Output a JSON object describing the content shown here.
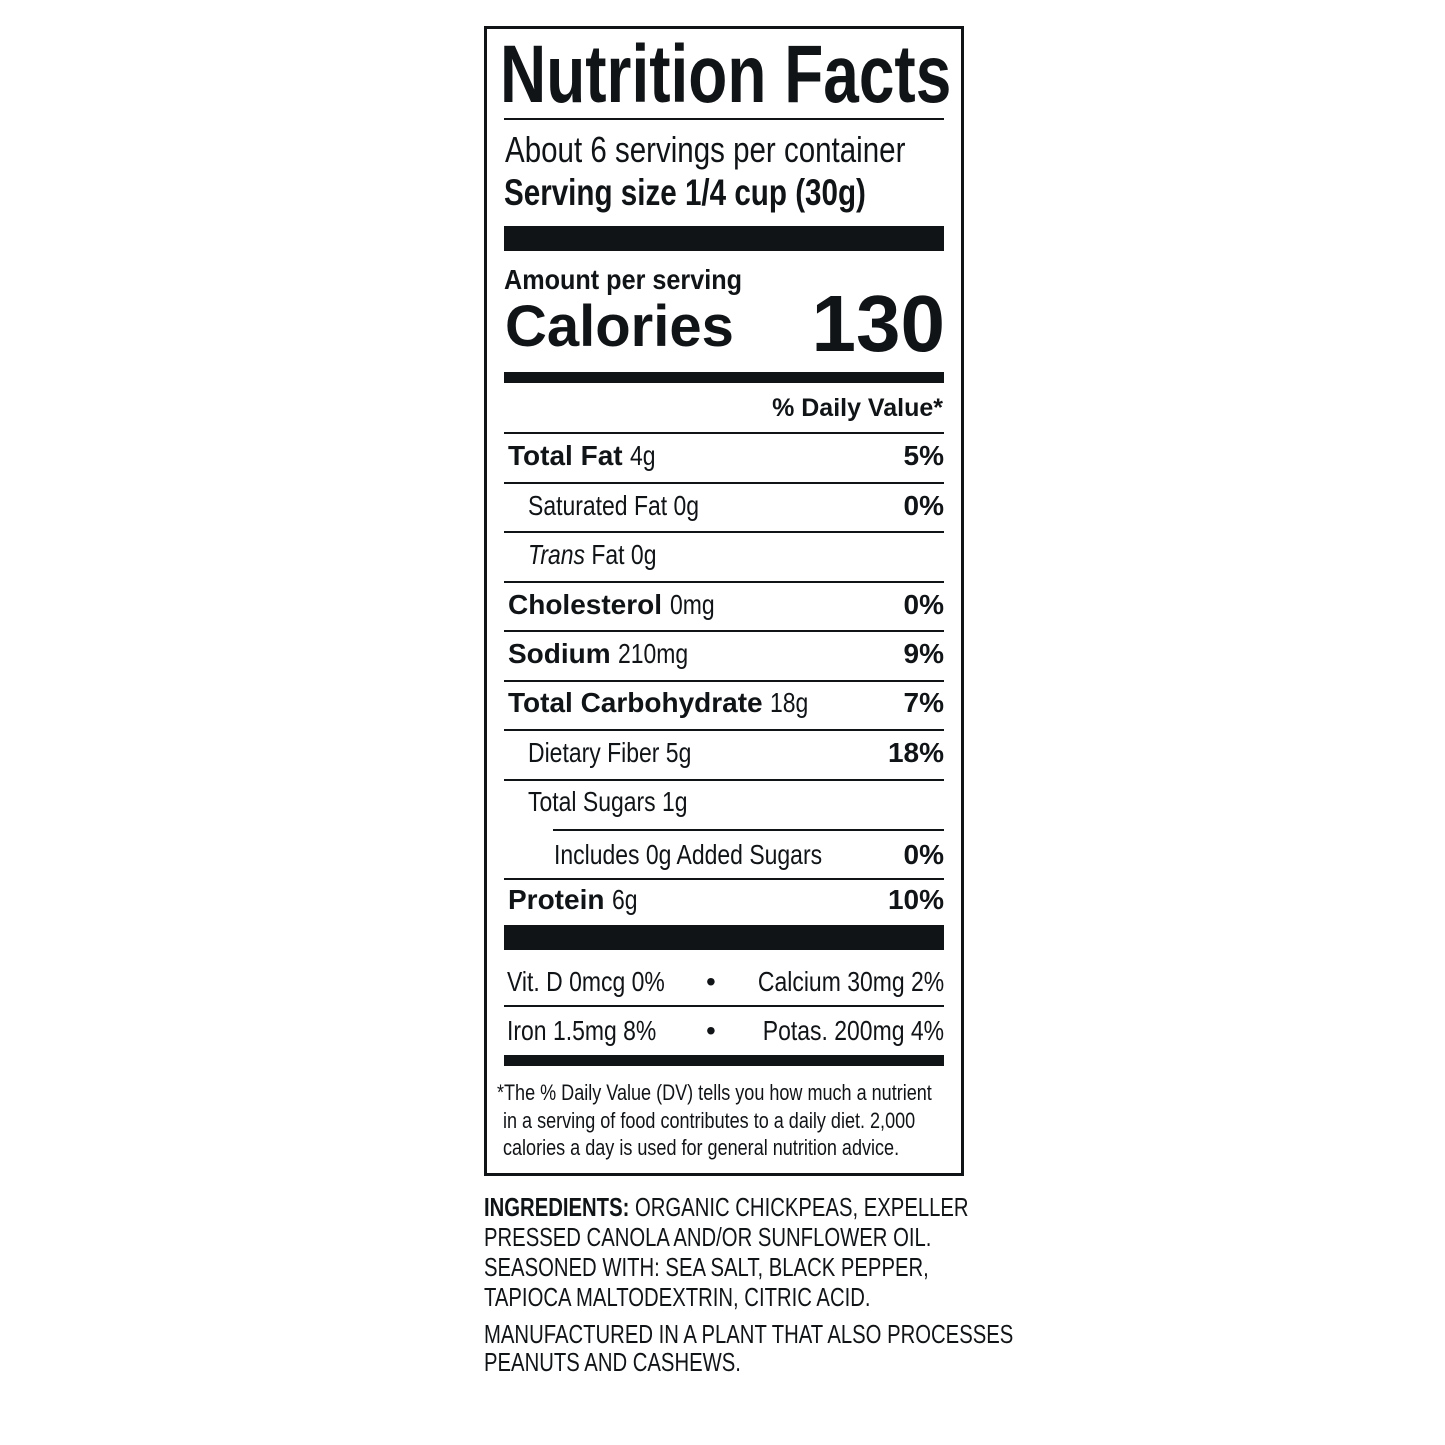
{
  "label": {
    "title": "Nutrition Facts",
    "servings_per_container": "About 6 servings per container",
    "serving_size_label": "Serving size",
    "serving_size_value": "1/4 cup (30g)",
    "amount_per_serving": "Amount per serving",
    "calories_label": "Calories",
    "calories_value": "130",
    "daily_value_header": "% Daily Value*",
    "nutrients": [
      {
        "name": "Total Fat",
        "amount": "4g",
        "dv": "5%"
      },
      {
        "name": "Saturated Fat",
        "amount": "0g",
        "dv": "0%"
      },
      {
        "name": "Trans",
        "name_rest": "Fat",
        "amount": "0g",
        "dv": ""
      },
      {
        "name": "Cholesterol",
        "amount": "0mg",
        "dv": "0%"
      },
      {
        "name": "Sodium",
        "amount": "210mg",
        "dv": "9%"
      },
      {
        "name": "Total Carbohydrate",
        "amount": "18g",
        "dv": "7%"
      },
      {
        "name": "Dietary Fiber",
        "amount": "5g",
        "dv": "18%"
      },
      {
        "name": "Total Sugars",
        "amount": "1g",
        "dv": ""
      },
      {
        "name": "Includes 0g Added Sugars",
        "amount": "",
        "dv": "0%"
      },
      {
        "name": "Protein",
        "amount": "6g",
        "dv": "10%"
      }
    ],
    "vitamins": [
      {
        "left": "Vit. D 0mcg 0%",
        "right": "Calcium 30mg 2%"
      },
      {
        "left": "Iron 1.5mg 8%",
        "right": "Potas. 200mg 4%"
      }
    ],
    "bullet": "•",
    "footnote": [
      "*The % Daily Value (DV) tells you how much a nutrient",
      "in a serving of food contributes to a daily diet. 2,000",
      "calories a day is used for general nutrition advice."
    ]
  },
  "ingredients": {
    "heading": "INGREDIENTS:",
    "lines": [
      "ORGANIC CHICKPEAS, EXPELLER",
      "PRESSED CANOLA AND/OR SUNFLOWER OIL.",
      "SEASONED WITH: SEA SALT, BLACK PEPPER,",
      "TAPIOCA MALTODEXTRIN, CITRIC ACID."
    ],
    "allergen_lines": [
      "MANUFACTURED IN A PLANT THAT ALSO PROCESSES",
      "PEANUTS AND CASHEWS."
    ]
  }
}
